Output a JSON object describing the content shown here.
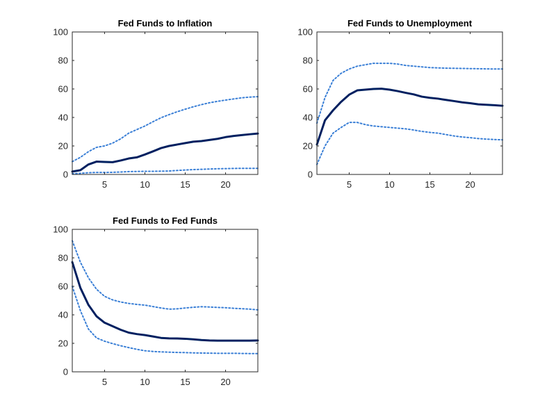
{
  "colors": {
    "median": "#002060",
    "bands": "#3a7fd6",
    "axes": "#262626",
    "background": "#ffffff"
  },
  "chart_data": [
    {
      "type": "line",
      "title": "Fed Funds to Inflation",
      "xlabel": "",
      "ylabel": "",
      "xlim": [
        1,
        24
      ],
      "ylim": [
        0,
        100
      ],
      "xticks": [
        5,
        10,
        15,
        20
      ],
      "yticks": [
        0,
        20,
        40,
        60,
        80,
        100
      ],
      "grid": false,
      "x": [
        1,
        2,
        3,
        4,
        5,
        6,
        7,
        8,
        9,
        10,
        11,
        12,
        13,
        14,
        15,
        16,
        17,
        18,
        19,
        20,
        21,
        22,
        23,
        24
      ],
      "series": [
        {
          "role": "median",
          "values": [
            2,
            3,
            7,
            9,
            8.8,
            8.6,
            9.8,
            11.2,
            12,
            14,
            16.2,
            18.5,
            20,
            21,
            22,
            23,
            23.4,
            24.2,
            25,
            26.2,
            27,
            27.6,
            28.2,
            28.7
          ]
        },
        {
          "role": "upper",
          "values": [
            9,
            12,
            16,
            19,
            20,
            22,
            25,
            29,
            31.5,
            34,
            37,
            39.8,
            42,
            44,
            45.8,
            47.5,
            49,
            50.3,
            51.3,
            52.2,
            53,
            53.8,
            54.3,
            54.6
          ]
        },
        {
          "role": "lower",
          "values": [
            0.5,
            0.8,
            1.2,
            1.4,
            1.4,
            1.5,
            1.7,
            2,
            2.1,
            2.2,
            2.2,
            2.3,
            2.4,
            2.8,
            3.1,
            3.4,
            3.6,
            3.8,
            4,
            4.1,
            4.2,
            4.3,
            4.3,
            4.3
          ]
        }
      ]
    },
    {
      "type": "line",
      "title": "Fed Funds to Unemployment",
      "xlabel": "",
      "ylabel": "",
      "xlim": [
        1,
        24
      ],
      "ylim": [
        0,
        100
      ],
      "xticks": [
        5,
        10,
        15,
        20
      ],
      "yticks": [
        0,
        20,
        40,
        60,
        80,
        100
      ],
      "grid": false,
      "x": [
        1,
        2,
        3,
        4,
        5,
        6,
        7,
        8,
        9,
        10,
        11,
        12,
        13,
        14,
        15,
        16,
        17,
        18,
        19,
        20,
        21,
        22,
        23,
        24
      ],
      "series": [
        {
          "role": "median",
          "values": [
            21,
            38,
            45,
            51,
            56,
            59,
            59.5,
            60,
            60.2,
            59.5,
            58.5,
            57.3,
            56.2,
            54.6,
            53.8,
            53.2,
            52.3,
            51.5,
            50.6,
            50,
            49.2,
            48.9,
            48.6,
            48.2
          ]
        },
        {
          "role": "upper",
          "values": [
            36,
            54,
            66,
            71,
            74,
            76,
            77,
            78,
            78,
            78,
            77.5,
            76.5,
            76,
            75.5,
            75,
            74.8,
            74.6,
            74.5,
            74.4,
            74.3,
            74.2,
            74.1,
            74,
            74
          ]
        },
        {
          "role": "lower",
          "values": [
            7,
            20,
            29,
            33,
            36.5,
            36.5,
            35,
            34,
            33.5,
            33,
            32.5,
            32,
            31.2,
            30.2,
            29.5,
            29,
            28,
            27,
            26.3,
            25.8,
            25.2,
            24.8,
            24.5,
            24.3
          ]
        }
      ]
    },
    {
      "type": "line",
      "title": "Fed Funds to Fed Funds",
      "xlabel": "",
      "ylabel": "",
      "xlim": [
        1,
        24
      ],
      "ylim": [
        0,
        100
      ],
      "xticks": [
        5,
        10,
        15,
        20
      ],
      "yticks": [
        0,
        20,
        40,
        60,
        80,
        100
      ],
      "grid": false,
      "x": [
        1,
        2,
        3,
        4,
        5,
        6,
        7,
        8,
        9,
        10,
        11,
        12,
        13,
        14,
        15,
        16,
        17,
        18,
        19,
        20,
        21,
        22,
        23,
        24
      ],
      "series": [
        {
          "role": "median",
          "values": [
            77,
            59,
            47,
            39,
            34.5,
            32,
            29.5,
            27.5,
            26.5,
            25.8,
            24.8,
            23.8,
            23.5,
            23.4,
            23.2,
            22.8,
            22.3,
            22,
            21.9,
            21.9,
            21.9,
            21.9,
            21.9,
            22
          ]
        },
        {
          "role": "upper",
          "values": [
            92,
            77,
            66,
            58,
            53,
            50.5,
            49,
            48,
            47.3,
            46.8,
            45.8,
            44.8,
            44,
            44.2,
            44.8,
            45.3,
            45.7,
            45.5,
            45.2,
            45,
            44.6,
            44.3,
            44,
            43.5
          ]
        },
        {
          "role": "lower",
          "values": [
            60,
            43,
            30,
            23.8,
            21.5,
            19.8,
            18.3,
            17,
            15.8,
            14.8,
            14.3,
            14,
            13.8,
            13.6,
            13.5,
            13.3,
            13.2,
            13.1,
            13,
            13,
            13,
            12.9,
            12.8,
            12.8
          ]
        }
      ]
    }
  ]
}
